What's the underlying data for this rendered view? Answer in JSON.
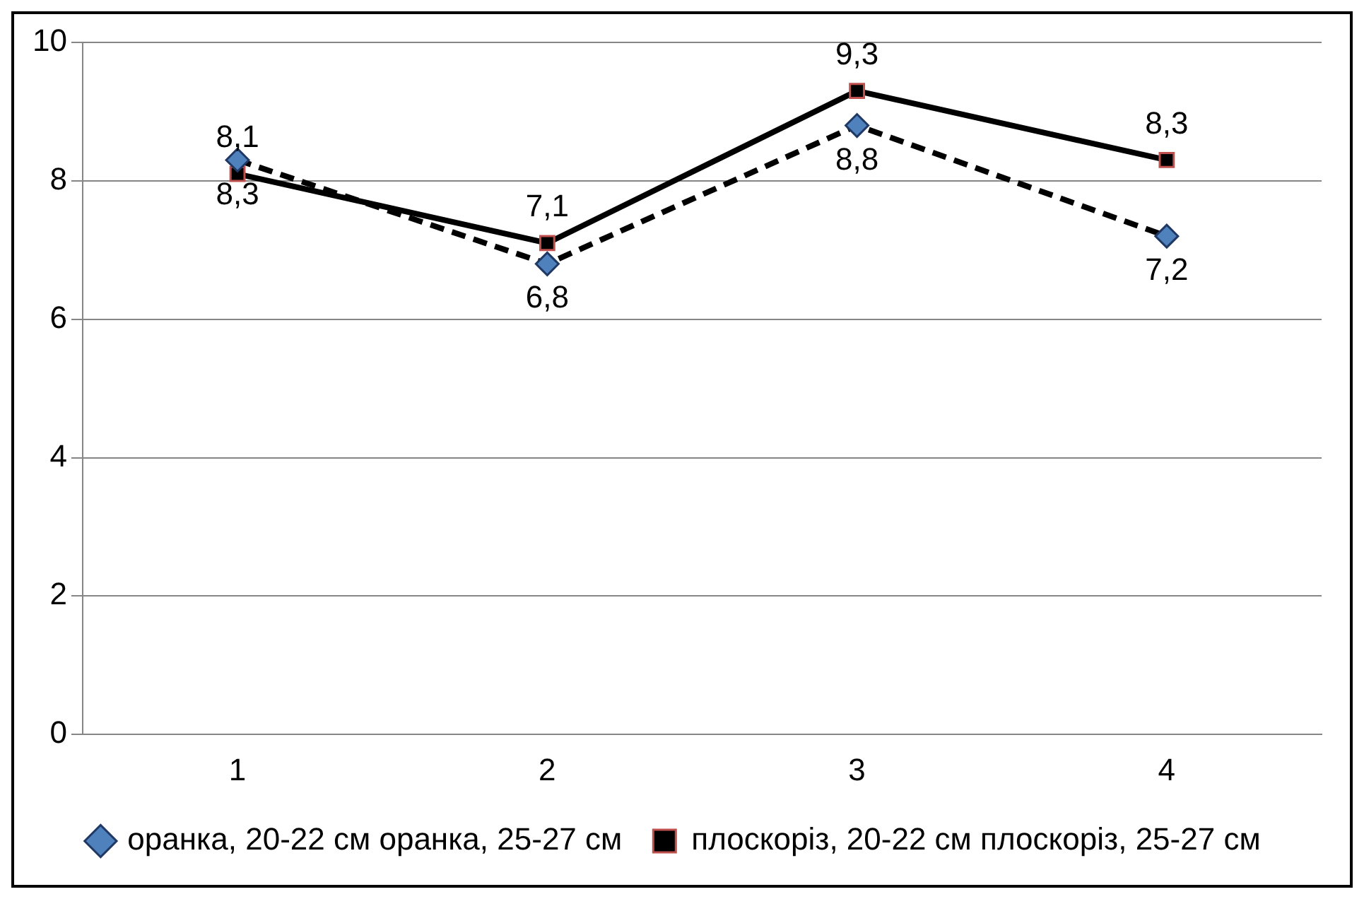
{
  "chart_data": {
    "type": "line",
    "categories": [
      "1",
      "2",
      "3",
      "4"
    ],
    "series": [
      {
        "name": "оранка, 20-22 см оранка, 25-27 см",
        "color": "#000000",
        "values": [
          8.3,
          6.8,
          8.8,
          7.2
        ],
        "value_labels": [
          "8,3",
          "6,8",
          "8,8",
          "7,2"
        ],
        "marker": "diamond",
        "line_style": "dashed"
      },
      {
        "name": "плоскоріз, 20-22 см плоскоріз, 25-27 см",
        "color": "#000000",
        "values": [
          8.1,
          7.1,
          9.3,
          8.3
        ],
        "value_labels": [
          "8,1",
          "7,1",
          "9,3",
          "8,3"
        ],
        "marker": "square",
        "line_style": "solid"
      }
    ],
    "ylim": [
      0,
      10
    ],
    "yticks": [
      0,
      2,
      4,
      6,
      8,
      10
    ],
    "grid": "y",
    "legend": "bottom"
  }
}
